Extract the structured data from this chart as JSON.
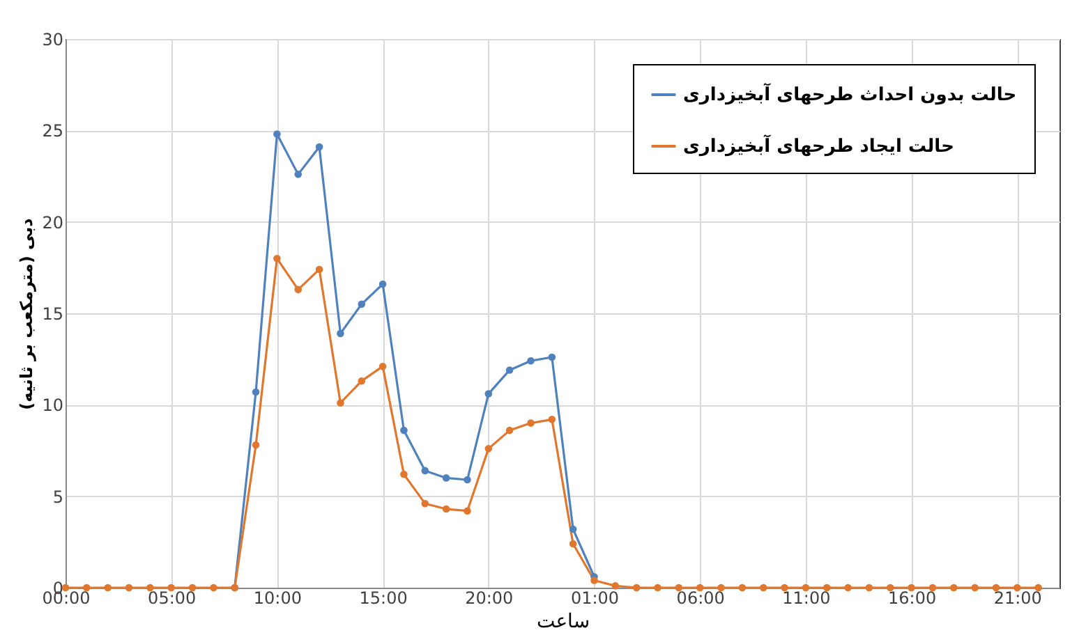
{
  "chart_data": {
    "type": "line",
    "xlabel": "ساعت",
    "ylabel": "دبی (مترمکعب بر ثانیه)",
    "x": [
      "2000-01-01T00:00",
      "2000-01-01T01:00",
      "2000-01-01T02:00",
      "2000-01-01T03:00",
      "2000-01-01T04:00",
      "2000-01-01T05:00",
      "2000-01-01T06:00",
      "2000-01-01T07:00",
      "2000-01-01T08:00",
      "2000-01-01T09:00",
      "2000-01-01T10:00",
      "2000-01-01T11:00",
      "2000-01-01T12:00",
      "2000-01-01T13:00",
      "2000-01-01T14:00",
      "2000-01-01T15:00",
      "2000-01-01T16:00",
      "2000-01-01T17:00",
      "2000-01-01T18:00",
      "2000-01-01T19:00",
      "2000-01-01T20:00",
      "2000-01-01T21:00",
      "2000-01-01T22:00",
      "2000-01-01T23:00",
      "2000-01-02T00:00",
      "2000-01-02T01:00",
      "2000-01-02T02:00",
      "2000-01-02T03:00",
      "2000-01-02T04:00",
      "2000-01-02T05:00",
      "2000-01-02T06:00",
      "2000-01-02T07:00",
      "2000-01-02T08:00",
      "2000-01-02T09:00",
      "2000-01-02T10:00",
      "2000-01-02T11:00",
      "2000-01-02T12:00",
      "2000-01-02T13:00",
      "2000-01-02T14:00",
      "2000-01-02T15:00",
      "2000-01-02T16:00",
      "2000-01-02T17:00",
      "2000-01-02T18:00",
      "2000-01-02T19:00",
      "2000-01-02T20:00",
      "2000-01-02T21:00",
      "2000-01-02T22:00"
    ],
    "series": [
      {
        "name": "حالت بدون احداث طرحهای آبخیزداری",
        "color": "#4f81bd",
        "values": [
          null,
          null,
          null,
          null,
          null,
          null,
          null,
          null,
          0,
          10.7,
          24.8,
          22.6,
          24.1,
          13.9,
          15.5,
          16.6,
          8.6,
          6.4,
          6.0,
          5.9,
          10.6,
          11.9,
          12.4,
          12.6,
          3.2,
          0.6,
          null,
          null,
          null,
          null,
          null,
          null,
          null,
          null,
          null,
          null,
          null,
          null,
          null,
          null,
          null,
          null,
          null,
          null,
          null,
          null,
          null
        ]
      },
      {
        "name": "حالت ایجاد طرحهای آبخیزداری",
        "color": "#e0772d",
        "values": [
          0,
          0,
          0,
          0,
          0,
          0,
          0,
          0,
          0,
          7.8,
          18.0,
          16.3,
          17.4,
          10.1,
          11.3,
          12.1,
          6.2,
          4.6,
          4.3,
          4.2,
          7.6,
          8.6,
          9.0,
          9.2,
          2.4,
          0.4,
          0.1,
          0,
          0,
          0,
          0,
          0,
          0,
          0,
          0,
          0,
          0,
          0,
          0,
          0,
          0,
          0,
          0,
          0,
          0,
          0,
          0
        ]
      }
    ],
    "xlim": [
      "2000-01-01T00:00",
      "2000-01-02T23:00"
    ],
    "xticks": [
      {
        "value": "2000-01-01T00:00",
        "label": "00:00"
      },
      {
        "value": "2000-01-01T05:00",
        "label": "05:00"
      },
      {
        "value": "2000-01-01T10:00",
        "label": "10:00"
      },
      {
        "value": "2000-01-01T15:00",
        "label": "15:00"
      },
      {
        "value": "2000-01-01T20:00",
        "label": "20:00"
      },
      {
        "value": "2000-01-02T01:00",
        "label": "01:00"
      },
      {
        "value": "2000-01-02T06:00",
        "label": "06:00"
      },
      {
        "value": "2000-01-02T11:00",
        "label": "11:00"
      },
      {
        "value": "2000-01-02T16:00",
        "label": "16:00"
      },
      {
        "value": "2000-01-02T21:00",
        "label": "21:00"
      }
    ],
    "ylim": [
      0,
      30
    ],
    "yticks": [
      0,
      5,
      10,
      15,
      20,
      25,
      30
    ],
    "grid": true,
    "legend": "top right",
    "marker": "circle",
    "line_style": "solid"
  }
}
